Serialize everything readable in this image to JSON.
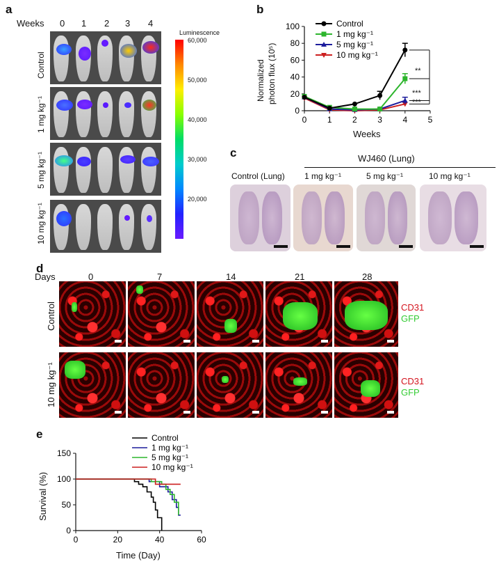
{
  "panel_labels": {
    "a": "a",
    "b": "b",
    "c": "c",
    "d": "d",
    "e": "e"
  },
  "panel_a": {
    "weeks_label": "Weeks",
    "weeks": [
      "0",
      "1",
      "2",
      "3",
      "4"
    ],
    "rows": [
      "Control",
      "1 mg kg⁻¹",
      "5 mg kg⁻¹",
      "10 mg kg⁻¹"
    ],
    "colorbar_title": "Luminescence",
    "colorbar_ticks": [
      "60,000",
      "50,000",
      "40,000",
      "30,000",
      "20,000"
    ]
  },
  "panel_b": {
    "ylabel_line1": "Normalized",
    "ylabel_line2": "photon flux (10⁵)",
    "xlabel": "Weeks",
    "significance": [
      "**",
      "***",
      "***"
    ]
  },
  "panel_c": {
    "group_header": "WJ460 (Lung)",
    "labels": [
      "Control (Lung)",
      "1 mg kg⁻¹",
      "5 mg kg⁻¹",
      "10 mg kg⁻¹"
    ]
  },
  "panel_d": {
    "days_label": "Days",
    "days": [
      "0",
      "7",
      "14",
      "21",
      "28"
    ],
    "rows": [
      "Control",
      "10 mg kg⁻¹"
    ],
    "stain1": "CD31",
    "stain2": "GFP",
    "colors": {
      "cd31": "#d4141e",
      "gfp": "#33cc33"
    }
  },
  "panel_e": {
    "ylabel": "Survival (%)",
    "xlabel": "Time (Day)"
  },
  "chart_data": [
    {
      "type": "line",
      "panel": "b",
      "x": [
        0,
        1,
        2,
        3,
        4
      ],
      "xlim": [
        0,
        5
      ],
      "ylim": [
        0,
        100
      ],
      "xticks": [
        0,
        1,
        2,
        3,
        4,
        5
      ],
      "yticks": [
        0,
        20,
        40,
        60,
        80,
        100
      ],
      "xlabel": "Weeks",
      "ylabel": "Normalized photon flux (10⁵)",
      "legend_position": "top-left",
      "series": [
        {
          "name": "Control",
          "color": "#000000",
          "marker": "circle",
          "values": [
            16,
            3,
            8,
            18,
            72
          ],
          "err": [
            0,
            0,
            0,
            5,
            8
          ]
        },
        {
          "name": "1 mg kg⁻¹",
          "color": "#2db52d",
          "marker": "square",
          "values": [
            17,
            4,
            2,
            2,
            38
          ],
          "err": [
            0,
            0,
            0,
            0,
            6
          ]
        },
        {
          "name": "5 mg kg⁻¹",
          "color": "#1c1c9c",
          "marker": "triangle-up",
          "values": [
            16,
            2,
            1,
            2,
            12
          ],
          "err": [
            0,
            0,
            0,
            0,
            4
          ]
        },
        {
          "name": "10 mg kg⁻¹",
          "color": "#cc1f1f",
          "marker": "triangle-down",
          "values": [
            15,
            1,
            0,
            1,
            8
          ],
          "err": [
            0,
            0,
            0,
            0,
            0
          ]
        }
      ]
    },
    {
      "type": "line",
      "panel": "e",
      "step": true,
      "xlim": [
        0,
        60
      ],
      "ylim": [
        0,
        150
      ],
      "xticks": [
        0,
        20,
        40,
        60
      ],
      "yticks": [
        0,
        50,
        100,
        150
      ],
      "xlabel": "Time (Day)",
      "ylabel": "Survival (%)",
      "legend_position": "top",
      "series": [
        {
          "name": "Control",
          "color": "#000000",
          "points": [
            [
              0,
              100
            ],
            [
              28,
              100
            ],
            [
              28,
              95
            ],
            [
              30,
              95
            ],
            [
              30,
              90
            ],
            [
              32,
              90
            ],
            [
              32,
              85
            ],
            [
              34,
              85
            ],
            [
              34,
              75
            ],
            [
              36,
              75
            ],
            [
              36,
              65
            ],
            [
              37,
              65
            ],
            [
              37,
              55
            ],
            [
              38,
              55
            ],
            [
              38,
              40
            ],
            [
              39,
              40
            ],
            [
              39,
              25
            ],
            [
              41,
              25
            ],
            [
              41,
              0
            ]
          ]
        },
        {
          "name": "1 mg kg⁻¹",
          "color": "#1c1c9c",
          "points": [
            [
              0,
              100
            ],
            [
              35,
              100
            ],
            [
              35,
              95
            ],
            [
              40,
              95
            ],
            [
              40,
              85
            ],
            [
              44,
              85
            ],
            [
              44,
              75
            ],
            [
              46,
              75
            ],
            [
              46,
              60
            ],
            [
              48,
              60
            ],
            [
              48,
              45
            ],
            [
              49,
              45
            ],
            [
              49,
              30
            ],
            [
              50,
              30
            ]
          ]
        },
        {
          "name": "5 mg kg⁻¹",
          "color": "#2db52d",
          "points": [
            [
              0,
              100
            ],
            [
              36,
              100
            ],
            [
              36,
              95
            ],
            [
              41,
              95
            ],
            [
              41,
              90
            ],
            [
              43,
              90
            ],
            [
              43,
              80
            ],
            [
              45,
              80
            ],
            [
              45,
              70
            ],
            [
              47,
              70
            ],
            [
              47,
              55
            ],
            [
              49,
              55
            ],
            [
              49,
              30
            ]
          ]
        },
        {
          "name": "10 mg kg⁻¹",
          "color": "#cc1f1f",
          "points": [
            [
              0,
              100
            ],
            [
              38,
              100
            ],
            [
              38,
              90
            ],
            [
              50,
              90
            ]
          ]
        }
      ]
    }
  ]
}
